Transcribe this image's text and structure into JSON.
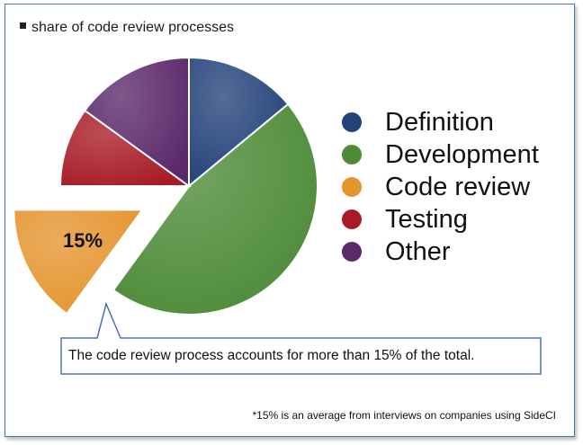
{
  "chart_data": {
    "type": "pie",
    "title": "share of code review processes",
    "categories": [
      "Definition",
      "Development",
      "Code review",
      "Testing",
      "Other"
    ],
    "values": [
      14,
      46,
      15,
      10,
      15
    ],
    "unit": "%",
    "exploded": "Code review",
    "data_labels": [
      {
        "category": "Code review",
        "text": "15%"
      }
    ],
    "legend_placement": "right",
    "colors": {
      "Definition": "#23427a",
      "Development": "#4d8b37",
      "Code review": "#e5942e",
      "Testing": "#a81b26",
      "Other": "#5b286a"
    }
  },
  "callout": {
    "text": "The code review process accounts for more than 15% of the total."
  },
  "footnote": "*15% is an average from interviews on companies using SideCI",
  "theme": {
    "frame_border": "#4a73b8",
    "callout_border": "#4a73b8"
  }
}
